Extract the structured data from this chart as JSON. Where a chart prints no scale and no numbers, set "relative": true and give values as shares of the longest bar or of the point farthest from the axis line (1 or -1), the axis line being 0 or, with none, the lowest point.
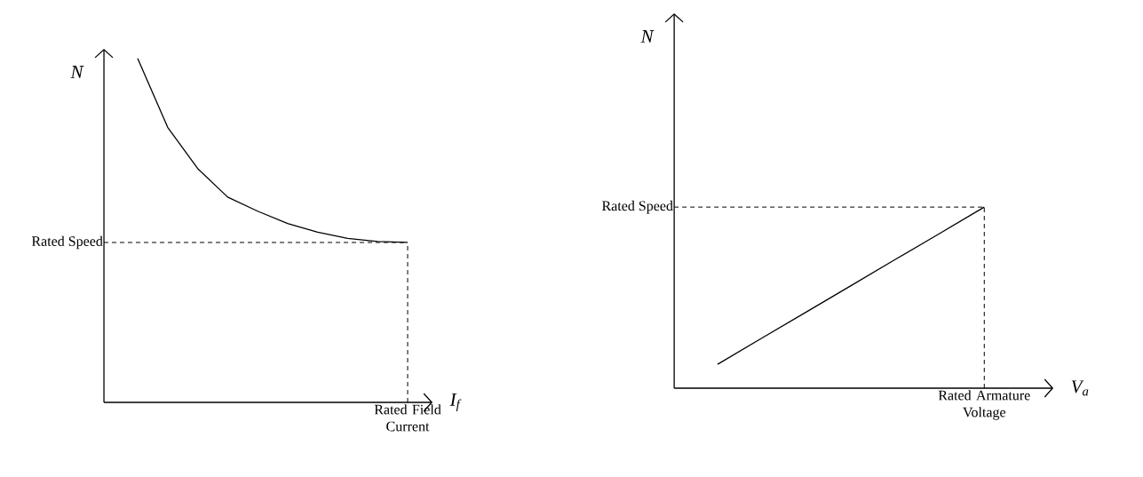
{
  "chart_data": [
    {
      "type": "line",
      "relative": true,
      "xlabel": "I$_{f}$",
      "ylabel": "N",
      "color": "#000000",
      "line_style": "solid",
      "categories": [
        null,
        null,
        null,
        null,
        null,
        null,
        null,
        null,
        null,
        null
      ],
      "values": [
        1.0,
        0.8,
        0.68,
        0.597,
        0.556,
        0.52,
        0.495,
        0.477,
        0.468,
        0.465
      ],
      "ref_lines": [
        {
          "axis": "y",
          "value": 0.465,
          "label": "Rated Speed",
          "line_style": "dashed"
        },
        {
          "axis": "x",
          "value": "Rated Field Current",
          "line_style": "dashed"
        }
      ]
    },
    {
      "type": "line",
      "relative": true,
      "xlabel": "V$_{a}$",
      "ylabel": "N",
      "color": "#000000",
      "line_style": "solid",
      "categories": [
        null,
        null,
        null,
        null,
        null,
        null,
        null
      ],
      "values": [
        0.132,
        0.277,
        0.421,
        0.566,
        0.711,
        0.855,
        1.0
      ],
      "ref_lines": [
        {
          "axis": "y",
          "value": 1.0,
          "label": "Rated Speed",
          "line_style": "dashed"
        },
        {
          "axis": "x",
          "value": "Rated Armature Voltage",
          "line_style": "dashed"
        }
      ]
    }
  ]
}
